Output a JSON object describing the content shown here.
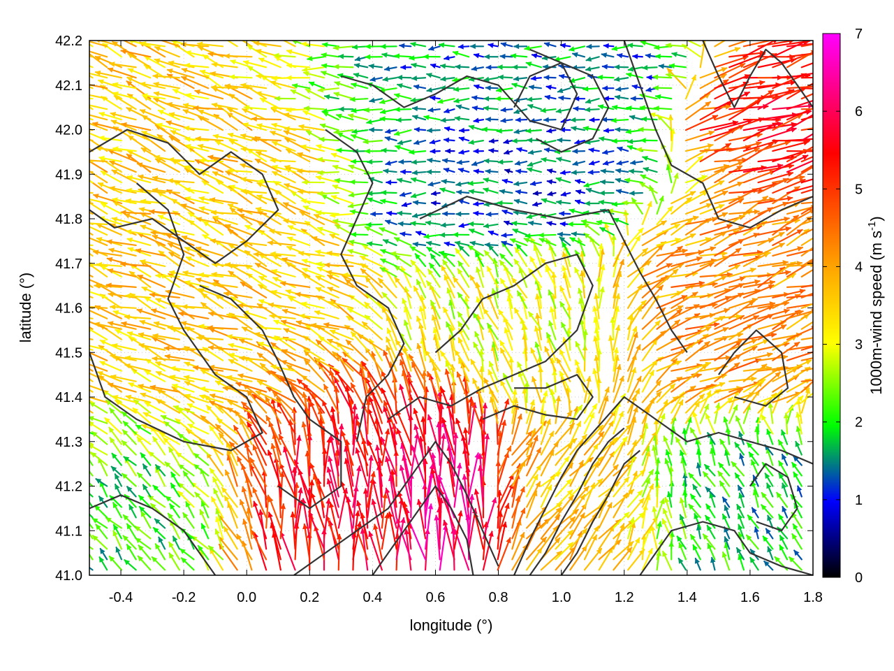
{
  "chart_data": {
    "type": "vector-field",
    "xlabel": "longitude (°)",
    "ylabel": "latitude (°)",
    "xlim": [
      -0.5,
      1.8
    ],
    "ylim": [
      41.0,
      42.2
    ],
    "xticks": [
      -0.4,
      -0.2,
      0.0,
      0.2,
      0.4,
      0.6,
      0.8,
      1.0,
      1.2,
      1.4,
      1.6,
      1.8
    ],
    "xtick_labels": [
      "-0.4",
      "-0.2",
      "0.0",
      "0.2",
      "0.4",
      "0.6",
      "0.8",
      "1.0",
      "1.2",
      "1.4",
      "1.6",
      "1.8"
    ],
    "yticks": [
      41.0,
      41.1,
      41.2,
      41.3,
      41.4,
      41.5,
      41.6,
      41.7,
      41.8,
      41.9,
      42.0,
      42.1,
      42.2
    ],
    "ytick_labels": [
      "41.0",
      "41.1",
      "41.2",
      "41.3",
      "41.4",
      "41.5",
      "41.6",
      "41.7",
      "41.8",
      "41.9",
      "42.0",
      "42.1",
      "42.2"
    ],
    "grid": true,
    "colorbar": {
      "label": "1000m-wind speed (m s",
      "label_sup": "-1",
      "label_end": ")",
      "range": [
        0,
        7
      ],
      "ticks": [
        0,
        1,
        2,
        3,
        4,
        5,
        6,
        7
      ],
      "tick_labels": [
        "0",
        "1",
        "2",
        "3",
        "4",
        "5",
        "6",
        "7"
      ],
      "palette": [
        "#000000",
        "#0000ff",
        "#00ff00",
        "#ffff00",
        "#ffa500",
        "#ff0000",
        "#ff00ff"
      ]
    },
    "wind_regions": [
      {
        "lon": [
          -0.5,
          0.3
        ],
        "lat": [
          41.3,
          42.2
        ],
        "speed": 3.6,
        "dir_deg": 160
      },
      {
        "lon": [
          0.0,
          0.7
        ],
        "lat": [
          41.0,
          41.35
        ],
        "speed": 5.5,
        "dir_deg": 95
      },
      {
        "lon": [
          0.55,
          0.75
        ],
        "lat": [
          41.0,
          41.3
        ],
        "speed": 6.5,
        "dir_deg": 100
      },
      {
        "lon": [
          0.3,
          1.2
        ],
        "lat": [
          42.0,
          42.2
        ],
        "speed": 1.5,
        "dir_deg": 180
      },
      {
        "lon": [
          0.4,
          1.2
        ],
        "lat": [
          41.75,
          41.95
        ],
        "speed": 1.2,
        "dir_deg": 180
      },
      {
        "lon": [
          1.2,
          1.8
        ],
        "lat": [
          41.4,
          41.8
        ],
        "speed": 4.2,
        "dir_deg": 20
      },
      {
        "lon": [
          1.5,
          1.8
        ],
        "lat": [
          41.9,
          42.1
        ],
        "speed": 5.3,
        "dir_deg": 15
      },
      {
        "lon": [
          1.3,
          1.8
        ],
        "lat": [
          41.0,
          41.3
        ],
        "speed": 1.8,
        "dir_deg": 120
      },
      {
        "lon": [
          0.6,
          1.2
        ],
        "lat": [
          41.4,
          41.7
        ],
        "speed": 3.0,
        "dir_deg": 110
      },
      {
        "lon": [
          0.8,
          1.3
        ],
        "lat": [
          41.0,
          41.3
        ],
        "speed": 3.6,
        "dir_deg": 50
      },
      {
        "lon": [
          -0.5,
          -0.1
        ],
        "lat": [
          41.0,
          41.3
        ],
        "speed": 2.0,
        "dir_deg": 130
      }
    ],
    "contours": [
      [
        [
          -0.5,
          41.95
        ],
        [
          -0.38,
          42.0
        ],
        [
          -0.25,
          41.97
        ],
        [
          -0.15,
          41.9
        ],
        [
          -0.05,
          41.95
        ],
        [
          0.05,
          41.9
        ],
        [
          0.1,
          41.82
        ],
        [
          0.0,
          41.75
        ],
        [
          -0.1,
          41.7
        ],
        [
          -0.2,
          41.75
        ],
        [
          -0.3,
          41.8
        ],
        [
          -0.42,
          41.78
        ],
        [
          -0.5,
          41.82
        ]
      ],
      [
        [
          -0.35,
          41.88
        ],
        [
          -0.25,
          41.82
        ],
        [
          -0.2,
          41.72
        ],
        [
          -0.25,
          41.62
        ],
        [
          -0.2,
          41.55
        ],
        [
          -0.1,
          41.45
        ],
        [
          0.0,
          41.4
        ],
        [
          0.05,
          41.32
        ],
        [
          -0.05,
          41.28
        ],
        [
          -0.2,
          41.3
        ],
        [
          -0.35,
          41.35
        ],
        [
          -0.45,
          41.4
        ],
        [
          -0.5,
          41.5
        ]
      ],
      [
        [
          -0.15,
          41.65
        ],
        [
          -0.05,
          41.62
        ],
        [
          0.05,
          41.55
        ],
        [
          0.1,
          41.48
        ],
        [
          0.15,
          41.4
        ],
        [
          0.2,
          41.35
        ],
        [
          0.3,
          41.3
        ],
        [
          0.3,
          41.2
        ],
        [
          0.2,
          41.15
        ],
        [
          0.1,
          41.2
        ]
      ],
      [
        [
          0.25,
          42.0
        ],
        [
          0.35,
          41.95
        ],
        [
          0.4,
          41.88
        ],
        [
          0.35,
          41.8
        ],
        [
          0.3,
          41.72
        ],
        [
          0.35,
          41.65
        ],
        [
          0.45,
          41.6
        ],
        [
          0.5,
          41.52
        ],
        [
          0.45,
          41.45
        ],
        [
          0.38,
          41.4
        ],
        [
          0.35,
          41.3
        ]
      ],
      [
        [
          0.45,
          41.35
        ],
        [
          0.55,
          41.4
        ],
        [
          0.65,
          41.38
        ],
        [
          0.75,
          41.42
        ],
        [
          0.85,
          41.45
        ],
        [
          0.95,
          41.48
        ],
        [
          1.05,
          41.55
        ],
        [
          1.1,
          41.65
        ],
        [
          1.05,
          41.72
        ],
        [
          0.95,
          41.7
        ],
        [
          0.85,
          41.65
        ],
        [
          0.75,
          41.62
        ],
        [
          0.68,
          41.55
        ],
        [
          0.6,
          41.5
        ]
      ],
      [
        [
          0.55,
          41.8
        ],
        [
          0.7,
          41.85
        ],
        [
          0.85,
          41.82
        ],
        [
          1.0,
          41.8
        ],
        [
          1.15,
          41.82
        ],
        [
          1.2,
          41.75
        ],
        [
          1.25,
          41.68
        ],
        [
          1.3,
          41.62
        ],
        [
          1.35,
          41.55
        ],
        [
          1.4,
          41.5
        ]
      ],
      [
        [
          0.3,
          42.12
        ],
        [
          0.4,
          42.1
        ],
        [
          0.5,
          42.05
        ],
        [
          0.6,
          42.08
        ],
        [
          0.7,
          42.12
        ],
        [
          0.8,
          42.1
        ],
        [
          0.9,
          42.02
        ],
        [
          1.0,
          42.0
        ],
        [
          1.05,
          42.08
        ],
        [
          1.0,
          42.15
        ],
        [
          0.9,
          42.18
        ]
      ],
      [
        [
          0.85,
          42.05
        ],
        [
          0.9,
          42.12
        ],
        [
          1.0,
          42.15
        ],
        [
          1.1,
          42.12
        ],
        [
          1.15,
          42.05
        ],
        [
          1.1,
          41.98
        ],
        [
          1.0,
          41.95
        ],
        [
          0.92,
          41.98
        ]
      ],
      [
        [
          1.2,
          42.2
        ],
        [
          1.25,
          42.1
        ],
        [
          1.3,
          42.0
        ],
        [
          1.35,
          41.92
        ],
        [
          1.45,
          41.88
        ],
        [
          1.5,
          41.8
        ],
        [
          1.6,
          41.78
        ],
        [
          1.7,
          41.82
        ],
        [
          1.8,
          41.85
        ]
      ],
      [
        [
          1.45,
          42.2
        ],
        [
          1.5,
          42.12
        ],
        [
          1.55,
          42.05
        ],
        [
          1.6,
          42.12
        ],
        [
          1.65,
          42.18
        ],
        [
          1.7,
          42.15
        ],
        [
          1.75,
          42.1
        ],
        [
          1.8,
          42.05
        ]
      ],
      [
        [
          0.15,
          41.0
        ],
        [
          0.25,
          41.05
        ],
        [
          0.35,
          41.1
        ],
        [
          0.45,
          41.15
        ],
        [
          0.5,
          41.2
        ],
        [
          0.55,
          41.25
        ],
        [
          0.6,
          41.3
        ],
        [
          0.65,
          41.25
        ],
        [
          0.7,
          41.18
        ],
        [
          0.75,
          41.1
        ],
        [
          0.8,
          41.02
        ]
      ],
      [
        [
          0.4,
          41.0
        ],
        [
          0.45,
          41.05
        ],
        [
          0.5,
          41.1
        ],
        [
          0.55,
          41.15
        ],
        [
          0.6,
          41.2
        ],
        [
          0.65,
          41.15
        ],
        [
          0.7,
          41.08
        ],
        [
          0.72,
          41.0
        ]
      ],
      [
        [
          0.85,
          41.0
        ],
        [
          0.9,
          41.08
        ],
        [
          0.95,
          41.15
        ],
        [
          1.0,
          41.22
        ],
        [
          1.05,
          41.28
        ],
        [
          1.1,
          41.32
        ],
        [
          1.15,
          41.36
        ],
        [
          1.2,
          41.4
        ],
        [
          1.3,
          41.35
        ],
        [
          1.4,
          41.3
        ],
        [
          1.5,
          41.32
        ],
        [
          1.6,
          41.3
        ],
        [
          1.7,
          41.28
        ],
        [
          1.8,
          41.25
        ]
      ],
      [
        [
          0.9,
          41.0
        ],
        [
          0.95,
          41.05
        ],
        [
          1.0,
          41.12
        ],
        [
          1.05,
          41.18
        ],
        [
          1.1,
          41.25
        ],
        [
          1.15,
          41.3
        ],
        [
          1.2,
          41.33
        ]
      ],
      [
        [
          1.0,
          41.0
        ],
        [
          1.05,
          41.05
        ],
        [
          1.1,
          41.12
        ],
        [
          1.15,
          41.18
        ],
        [
          1.2,
          41.25
        ],
        [
          1.25,
          41.28
        ]
      ],
      [
        [
          0.75,
          41.35
        ],
        [
          0.85,
          41.38
        ],
        [
          0.95,
          41.36
        ],
        [
          1.05,
          41.35
        ],
        [
          1.1,
          41.4
        ],
        [
          1.05,
          41.45
        ],
        [
          0.95,
          41.42
        ],
        [
          0.85,
          41.42
        ]
      ],
      [
        [
          1.6,
          41.2
        ],
        [
          1.65,
          41.25
        ],
        [
          1.72,
          41.22
        ],
        [
          1.75,
          41.15
        ],
        [
          1.7,
          41.1
        ],
        [
          1.62,
          41.12
        ]
      ],
      [
        [
          1.5,
          41.45
        ],
        [
          1.55,
          41.5
        ],
        [
          1.62,
          41.55
        ],
        [
          1.7,
          41.5
        ],
        [
          1.72,
          41.42
        ],
        [
          1.65,
          41.38
        ],
        [
          1.55,
          41.4
        ]
      ],
      [
        [
          -0.5,
          41.15
        ],
        [
          -0.4,
          41.18
        ],
        [
          -0.3,
          41.15
        ],
        [
          -0.2,
          41.1
        ],
        [
          -0.15,
          41.05
        ],
        [
          -0.1,
          41.0
        ]
      ],
      [
        [
          1.25,
          41.0
        ],
        [
          1.3,
          41.05
        ],
        [
          1.35,
          41.1
        ],
        [
          1.45,
          41.12
        ],
        [
          1.55,
          41.1
        ],
        [
          1.6,
          41.05
        ],
        [
          1.7,
          41.02
        ],
        [
          1.8,
          41.0
        ]
      ]
    ]
  }
}
